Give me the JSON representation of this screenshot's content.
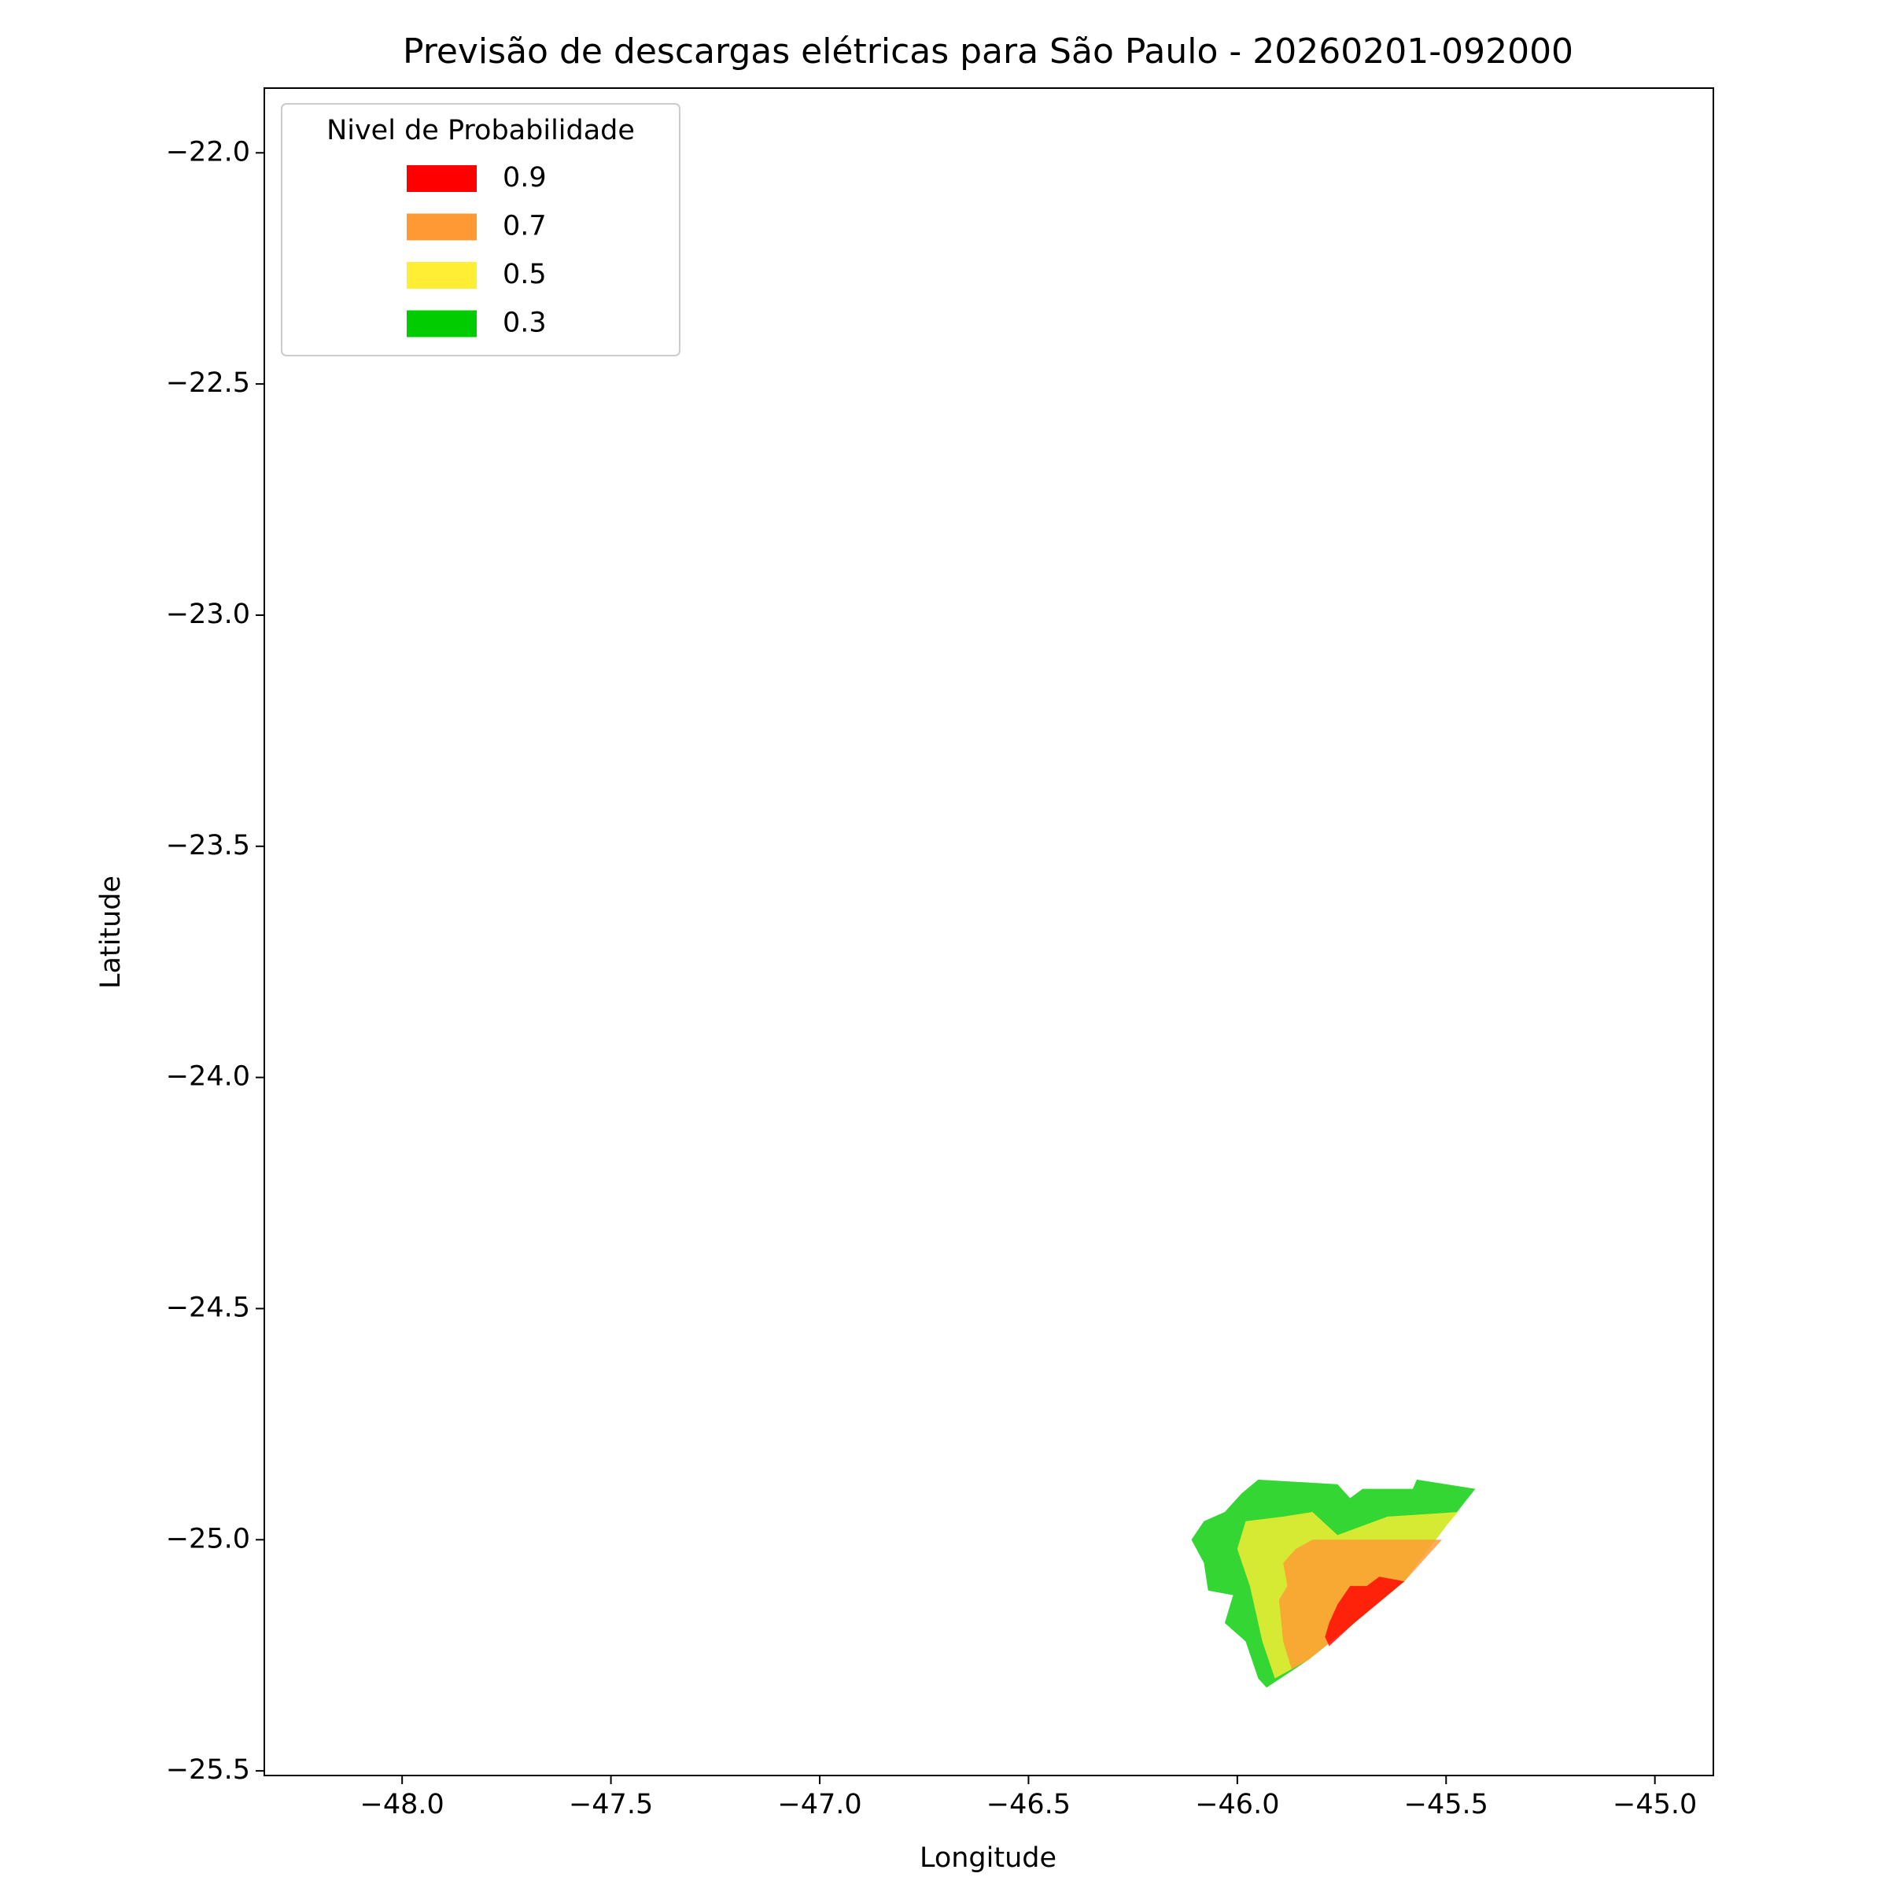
{
  "chart_data": {
    "type": "filled-contour",
    "title": "Previsão de descargas elétricas para São Paulo - 20260201-092000",
    "x_label": "Longitude",
    "y_label": "Latitude",
    "legend_title": "Nivel de Probabilidade",
    "legend_position": "upper left",
    "alpha": 0.8,
    "xlim": [
      -48.33,
      -44.86
    ],
    "ylim": [
      -25.51,
      -21.86
    ],
    "xticks": [
      {
        "value": -48,
        "label": "−48.0"
      },
      {
        "value": -47.5,
        "label": "−47.5"
      },
      {
        "value": -47,
        "label": "−47.0"
      },
      {
        "value": -46.5,
        "label": "−46.5"
      },
      {
        "value": -46,
        "label": "−46.0"
      },
      {
        "value": -45.5,
        "label": "−45.5"
      },
      {
        "value": -45,
        "label": "−45.0"
      }
    ],
    "yticks": [
      {
        "value": -22,
        "label": "−22.0"
      },
      {
        "value": -22.5,
        "label": "−22.5"
      },
      {
        "value": -23,
        "label": "−23.0"
      },
      {
        "value": -23.5,
        "label": "−23.5"
      },
      {
        "value": -24,
        "label": "−24.0"
      },
      {
        "value": -24.5,
        "label": "−24.5"
      },
      {
        "value": -25,
        "label": "−25.0"
      },
      {
        "value": -25.5,
        "label": "−25.5"
      }
    ],
    "series": [
      {
        "name": "0.9",
        "color": "#ff0000",
        "x": [
          -45.76,
          -45.73,
          -45.69,
          -45.66,
          -45.6,
          -45.72,
          -45.78,
          -45.79,
          -45.78
        ],
        "y": [
          -25.14,
          -25.1,
          -25.1,
          -25.08,
          -25.09,
          -25.18,
          -25.23,
          -25.21,
          -25.18
        ]
      },
      {
        "name": "0.7",
        "color": "#ff9933",
        "x": [
          -45.89,
          -45.86,
          -45.82,
          -45.51,
          -45.6,
          -45.72,
          -45.83,
          -45.87,
          -45.89,
          -45.9,
          -45.88
        ],
        "y": [
          -25.05,
          -25.02,
          -25.0,
          -25.0,
          -25.09,
          -25.18,
          -25.26,
          -25.28,
          -25.22,
          -25.13,
          -25.1
        ]
      },
      {
        "name": "0.5",
        "color": "#ffee33",
        "x": [
          -45.98,
          -45.89,
          -45.82,
          -45.76,
          -45.64,
          -45.47,
          -45.5,
          -45.6,
          -45.72,
          -45.83,
          -45.91,
          -45.94,
          -45.97,
          -46.0
        ],
        "y": [
          -24.96,
          -24.95,
          -24.94,
          -24.99,
          -24.95,
          -24.94,
          -24.97,
          -25.09,
          -25.18,
          -25.26,
          -25.3,
          -25.22,
          -25.1,
          -25.02
        ]
      },
      {
        "name": "0.3",
        "color": "#00cc00",
        "x": [
          -45.95,
          -45.76,
          -45.73,
          -45.7,
          -45.58,
          -45.57,
          -45.43,
          -45.5,
          -45.6,
          -45.72,
          -45.83,
          -45.93,
          -45.95,
          -45.98,
          -46.03,
          -46.01,
          -46.07,
          -46.08,
          -46.11,
          -46.08,
          -46.03,
          -45.99
        ],
        "y": [
          -24.87,
          -24.88,
          -24.91,
          -24.89,
          -24.89,
          -24.87,
          -24.89,
          -24.97,
          -25.09,
          -25.18,
          -25.26,
          -25.32,
          -25.3,
          -25.22,
          -25.18,
          -25.12,
          -25.11,
          -25.05,
          -25.0,
          -24.96,
          -24.94,
          -24.9
        ]
      }
    ]
  }
}
